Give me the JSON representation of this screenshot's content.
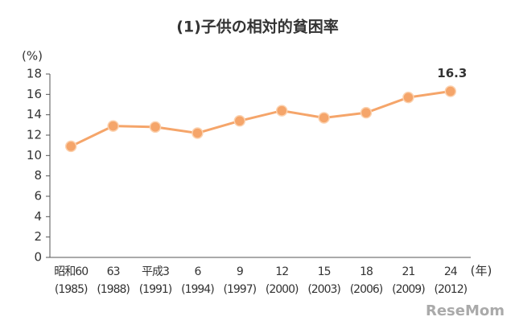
{
  "chart_data": {
    "type": "line",
    "title": "(1)子供の相対的貧困率",
    "y_unit": "(%)",
    "x_unit": "(年)",
    "categories": [
      [
        "昭和60",
        "(1985)"
      ],
      [
        "63",
        "(1988)"
      ],
      [
        "平成3",
        "(1991)"
      ],
      [
        "6",
        "(1994)"
      ],
      [
        "9",
        "(1997)"
      ],
      [
        "12",
        "(2000)"
      ],
      [
        "15",
        "(2003)"
      ],
      [
        "18",
        "(2006)"
      ],
      [
        "21",
        "(2009)"
      ],
      [
        "24",
        "(2012)"
      ]
    ],
    "series": [
      {
        "color": "#f5a56a",
        "values": [
          10.9,
          12.9,
          12.8,
          12.2,
          13.4,
          14.4,
          13.7,
          14.2,
          15.7,
          16.3
        ],
        "value_labels": [
          null,
          null,
          null,
          null,
          null,
          null,
          null,
          null,
          null,
          "16.3"
        ]
      }
    ],
    "ylim": [
      0,
      18
    ],
    "yticks": [
      0,
      2,
      4,
      6,
      8,
      10,
      12,
      14,
      16,
      18
    ],
    "grid": false,
    "watermark": "ReseMom"
  }
}
